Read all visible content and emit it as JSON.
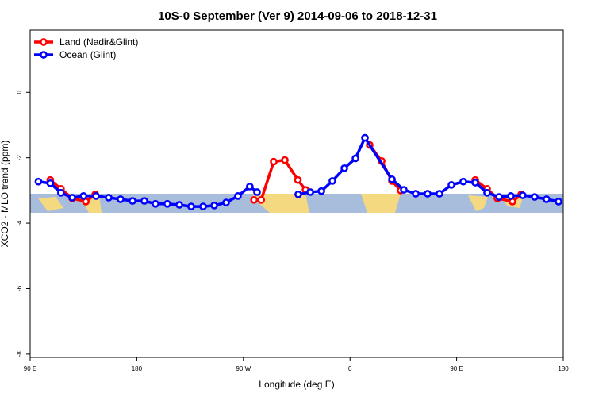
{
  "chart_data": {
    "type": "line",
    "title": "10S-0 September (Ver 9)   2014-09-06 to 2018-12-31",
    "xlabel": "Longitude (deg E)",
    "ylabel": "XCO2 - MLO trend (ppm)",
    "xlim": [
      90,
      540
    ],
    "xticks": [
      {
        "value": 90,
        "label": "90 E"
      },
      180,
      {
        "value": 270,
        "label": "90 W"
      },
      {
        "value": 360,
        "label": "0"
      },
      {
        "value": 450,
        "label": "90 E"
      },
      {
        "value": 540,
        "label": "180"
      }
    ],
    "ylim": [
      -8.1,
      1.9
    ],
    "yticks": [
      -8,
      -6,
      -4,
      -2,
      0
    ],
    "legend": "upper left",
    "series": [
      {
        "name": "Land (Nadir&Glint)",
        "color": "#ff0000",
        "x": [
          107,
          116,
          125.5,
          137,
          145,
          null,
          279,
          285,
          295.6,
          305,
          316,
          322.4,
          null,
          376.6,
          386.7,
          395.4,
          402.7,
          null,
          465.7,
          475.7,
          484.4,
          497.1,
          504.5
        ],
        "values": [
          -2.68,
          -2.95,
          -3.24,
          -3.34,
          -3.12,
          null,
          -3.29,
          -3.29,
          -2.12,
          -2.07,
          -2.68,
          -2.98,
          null,
          -1.61,
          -2.1,
          -2.71,
          -3.0,
          null,
          -2.68,
          -2.95,
          -3.24,
          -3.34,
          -3.12
        ]
      },
      {
        "name": "Ocean (Glint)",
        "color": "#0000ff",
        "x": [
          97,
          107,
          116,
          125.5,
          135,
          145.6,
          156.3,
          166.3,
          176.4,
          186.4,
          195.8,
          205.8,
          215.9,
          225.9,
          236,
          245.4,
          255.4,
          265.4,
          275.4,
          281.5,
          null,
          316.3,
          326.4,
          335.8,
          345.1,
          355.2,
          364.6,
          372.6,
          395.4,
          405.4,
          415.5,
          425.5,
          435.5,
          445.6,
          455.6,
          465.7,
          475.7,
          485.8,
          495.8,
          505.8,
          515.9,
          525.9,
          536
        ],
        "values": [
          -2.73,
          -2.78,
          -3.07,
          -3.22,
          -3.17,
          -3.17,
          -3.22,
          -3.27,
          -3.32,
          -3.32,
          -3.41,
          -3.41,
          -3.44,
          -3.49,
          -3.49,
          -3.46,
          -3.37,
          -3.17,
          -2.88,
          -3.05,
          null,
          -3.12,
          -3.05,
          -3.02,
          -2.71,
          -2.32,
          -2.02,
          -1.39,
          -2.66,
          -2.98,
          -3.1,
          -3.1,
          -3.1,
          -2.83,
          -2.73,
          -2.76,
          -3.07,
          -3.2,
          -3.17,
          -3.15,
          -3.2,
          -3.27,
          -3.34
        ]
      }
    ]
  }
}
